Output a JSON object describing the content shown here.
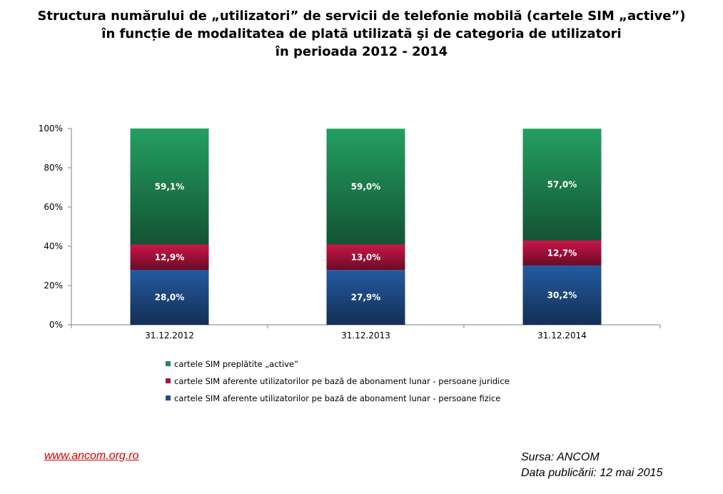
{
  "title_lines": [
    "Structura numărului de „utilizatori” de servicii de telefonie mobilă (cartele SIM „active”)",
    "în funcție de modalitatea de plată utilizată şi de categoria de utilizatori",
    "în perioada 2012 - 2014"
  ],
  "footer": {
    "link": "www.ancom.org.ro",
    "source": "Sursa: ANCOM",
    "published": "Data publicării: 12 mai 2015"
  },
  "chart_data": {
    "type": "bar",
    "stacked": true,
    "percent": true,
    "categories": [
      "31.12.2012",
      "31.12.2013",
      "31.12.2014"
    ],
    "series": [
      {
        "name": "cartele SIM aferente utilizatorilor pe bază de abonament lunar - persoane fizice",
        "values": [
          28.0,
          27.9,
          30.2
        ],
        "labels": [
          "28,0%",
          "27,9%",
          "30,2%"
        ],
        "color": "#1f4e8c"
      },
      {
        "name": "cartele SIM aferente utilizatorilor pe bază de abonament lunar - persoane juridice",
        "values": [
          12.9,
          13.0,
          12.7
        ],
        "labels": [
          "12,9%",
          "13,0%",
          "12,7%"
        ],
        "color": "#b0123f"
      },
      {
        "name": "cartele SIM preplătite „active”",
        "values": [
          59.1,
          59.0,
          57.0
        ],
        "labels": [
          "59,1%",
          "59,0%",
          "57,0%"
        ],
        "color": "#1f8a55"
      }
    ],
    "yticks": [
      "0%",
      "20%",
      "40%",
      "60%",
      "80%",
      "100%"
    ],
    "ylim": [
      0,
      100
    ],
    "legend_order": [
      2,
      1,
      0
    ],
    "legend_position": "bottom-left",
    "grid": false
  }
}
